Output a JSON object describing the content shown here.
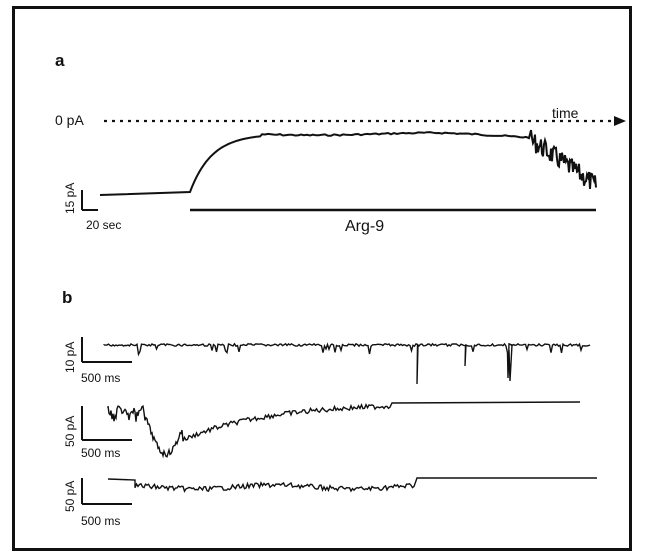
{
  "panel_a": {
    "label": "a",
    "zero_label": "0 pA",
    "time_label": "time",
    "scale_y": "15 pA",
    "scale_x": "20 sec",
    "bar_label": "Arg-9"
  },
  "panel_b": {
    "label": "b",
    "traces": [
      {
        "scale_y": "10 pA",
        "scale_x": "500 ms"
      },
      {
        "scale_y": "50 pA",
        "scale_x": "500 ms"
      },
      {
        "scale_y": "50 pA",
        "scale_x": "500 ms"
      }
    ]
  }
}
